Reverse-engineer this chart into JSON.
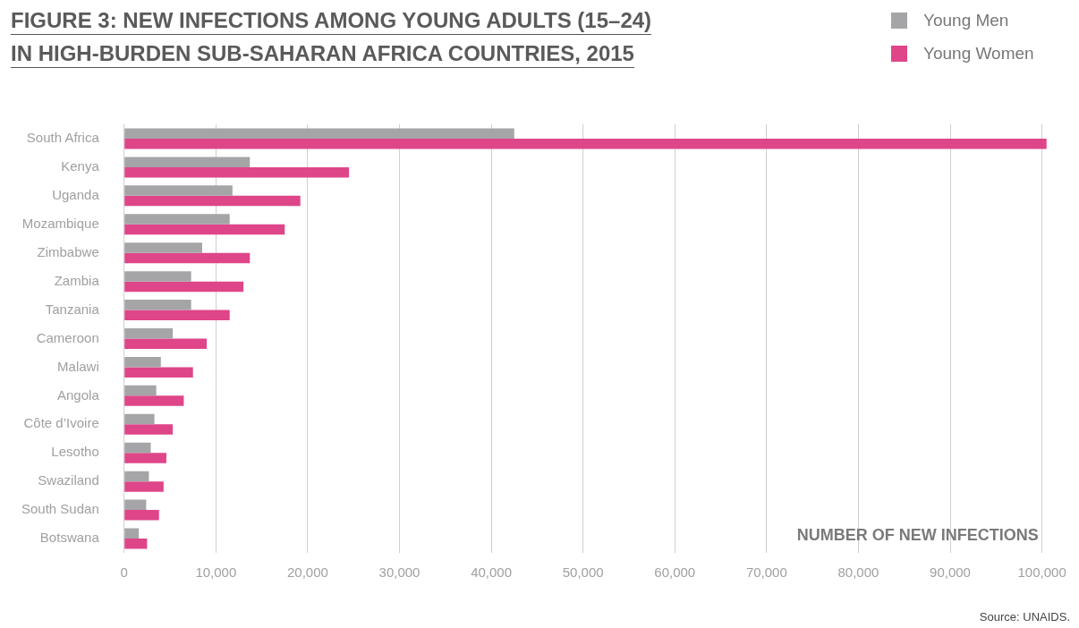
{
  "chart_data": {
    "type": "bar",
    "orientation": "horizontal",
    "title": "FIGURE 3: NEW INFECTIONS AMONG YOUNG ADULTS (15–24) IN HIGH-BURDEN SUB-SAHARAN AFRICA COUNTRIES, 2015",
    "xlabel": "NUMBER OF NEW INFECTIONS",
    "annotations": [
      "Source: UNAIDS."
    ],
    "categories": [
      "South Africa",
      "Kenya",
      "Uganda",
      "Mozambique",
      "Zimbabwe",
      "Zambia",
      "Tanzania",
      "Cameroon",
      "Malawi",
      "Angola",
      "Côte d’Ivoire",
      "Lesotho",
      "Swaziland",
      "South Sudan",
      "Botswana"
    ],
    "series": [
      {
        "name": "Young Men",
        "color": "#a5a4a7",
        "values": [
          42500,
          13700,
          11800,
          11500,
          8500,
          7300,
          7300,
          5300,
          4000,
          3500,
          3300,
          2900,
          2700,
          2400,
          1600
        ]
      },
      {
        "name": "Young Women",
        "color": "#df4589",
        "values": [
          100500,
          24500,
          19200,
          17500,
          13700,
          13000,
          11500,
          9000,
          7500,
          6500,
          5300,
          4600,
          4300,
          3800,
          2500
        ]
      }
    ],
    "xlim": [
      0,
      101000
    ],
    "xticks": [
      0,
      {
        "value": 10000,
        "label": "10,000"
      },
      {
        "value": 20000,
        "label": "20,000"
      },
      {
        "value": 30000,
        "label": "30,000"
      },
      {
        "value": 40000,
        "label": "40,000"
      },
      {
        "value": 50000,
        "label": "50,000"
      },
      {
        "value": 60000,
        "label": "60,000"
      },
      {
        "value": 70000,
        "label": "70,000"
      },
      {
        "value": 80000,
        "label": "80,000"
      },
      {
        "value": 90000,
        "label": "90,000"
      },
      {
        "value": 100000,
        "label": "100,000"
      }
    ],
    "grid": "x",
    "legend": "top right"
  }
}
